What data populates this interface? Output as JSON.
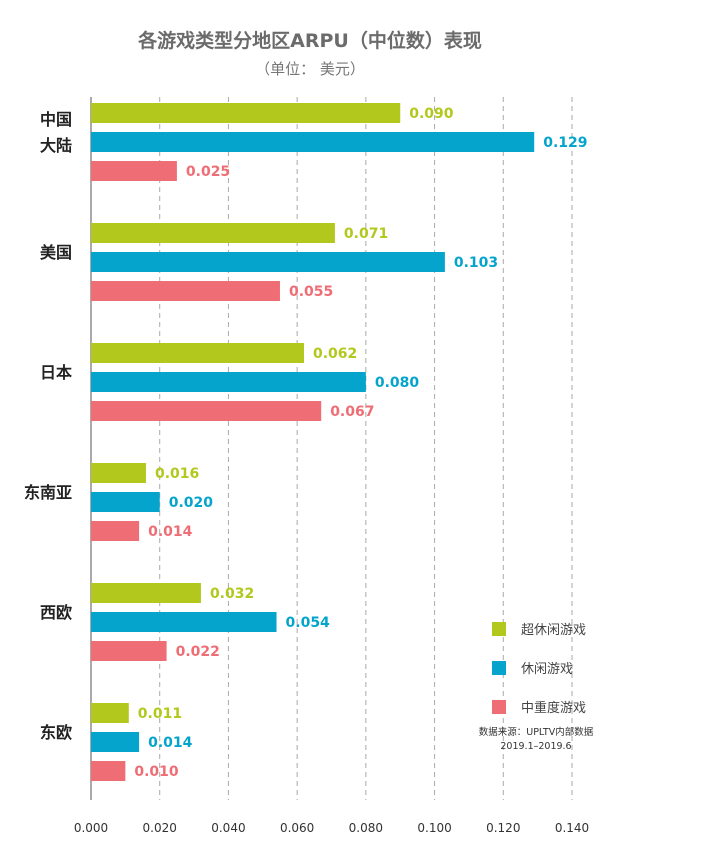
{
  "chart_data": {
    "type": "bar",
    "orientation": "horizontal",
    "title": "各游戏类型分地区ARPU（中位数）表现",
    "subtitle": "（单位： 美元）",
    "categories": [
      "中国大陆",
      "美国",
      "日本",
      "东南亚",
      "西欧",
      "东欧"
    ],
    "category_lines": [
      [
        "中国",
        "大陆"
      ],
      [
        "美国"
      ],
      [
        "日本"
      ],
      [
        "东南亚"
      ],
      [
        "西欧"
      ],
      [
        "东欧"
      ]
    ],
    "series": [
      {
        "name": "超休闲游戏",
        "color": "#b3c81c",
        "values": [
          0.09,
          0.071,
          0.062,
          0.016,
          0.032,
          0.011
        ]
      },
      {
        "name": "休闲游戏",
        "color": "#05a4cc",
        "values": [
          0.129,
          0.103,
          0.08,
          0.02,
          0.054,
          0.014
        ]
      },
      {
        "name": "中重度游戏",
        "color": "#ef6d74",
        "values": [
          0.025,
          0.055,
          0.067,
          0.014,
          0.022,
          0.01
        ]
      }
    ],
    "xlim": [
      0,
      0.14
    ],
    "xticks": [
      "0.000",
      "0.020",
      "0.040",
      "0.060",
      "0.080",
      "0.100",
      "0.120",
      "0.140"
    ],
    "grid": "vertical dashed",
    "legend_position": "bottom-right",
    "source": "数据来源：UPLTV内部数据",
    "source_period": "2019.1–2019.6"
  }
}
